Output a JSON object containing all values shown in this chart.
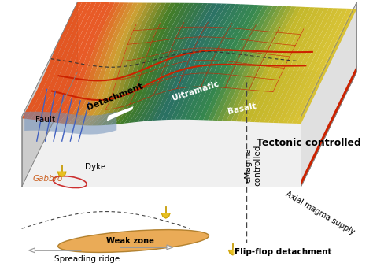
{
  "title": "",
  "fig_width": 4.74,
  "fig_height": 3.39,
  "dpi": 100,
  "bg_color": "#ffffff",
  "labels": {
    "flip_flop": "Flip-flop detachment",
    "detachment": "Detachment",
    "ultramafic": "Ultramafic",
    "basalt": "Basalt",
    "fault": "Fault",
    "dyke": "Dyke",
    "gabbro": "Gabbro",
    "weak_zone": "Weak zone",
    "spreading_ridge": "Spreading ridge",
    "emagma": "eMagma\ncontrolled",
    "tectonic": "Tectonic controlled",
    "axial_magma": "Axial magma supply"
  },
  "colors": {
    "block_side_gray": "#d8d8d8",
    "block_bottom_gray": "#e8e8e8",
    "weak_zone_orange": "#e8a040",
    "detachment_line": "#cc2200",
    "dike_blue": "#4060c0",
    "gabbro_red": "#cc3030",
    "text_black": "#000000",
    "text_white": "#ffffff",
    "axial_red": "#cc2200"
  }
}
